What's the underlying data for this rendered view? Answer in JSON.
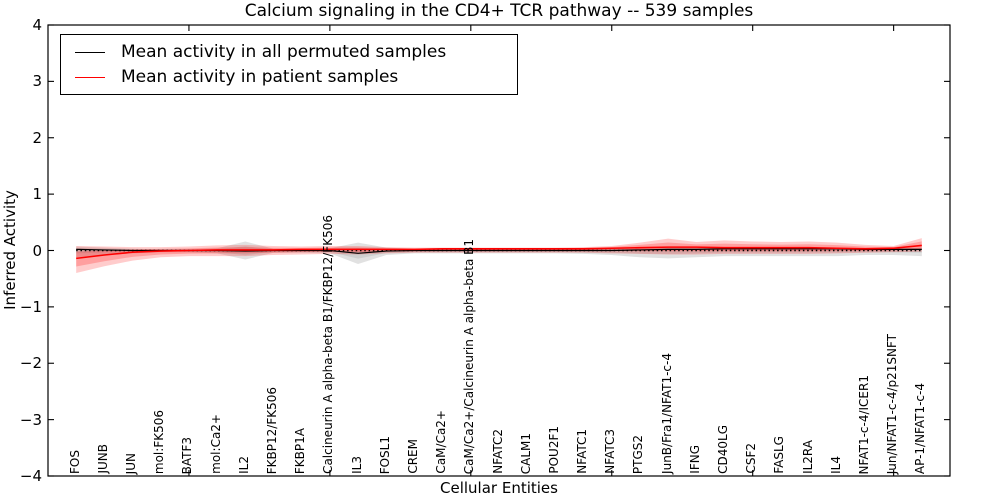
{
  "title": "Calcium signaling in the CD4+ TCR pathway -- 539 samples",
  "legend": {
    "items": [
      {
        "label": "Mean activity in all permuted samples",
        "color": "#000000"
      },
      {
        "label": "Mean activity in patient samples",
        "color": "#ff0000"
      }
    ]
  },
  "axes": {
    "ylabel": "Inferred Activity",
    "xlabel": "Cellular Entities",
    "yticks": [
      "4",
      "3",
      "2",
      "1",
      "0",
      "−1",
      "−2",
      "−3",
      "−4"
    ]
  },
  "colors": {
    "patient_line": "#ff0000",
    "permuted_line": "#000000",
    "patient_band": "#ff0000",
    "permuted_band": "#888888",
    "zero_line": "#000000"
  },
  "chart_data": {
    "type": "line",
    "title": "Calcium signaling in the CD4+ TCR pathway -- 539 samples",
    "xlabel": "Cellular Entities",
    "ylabel": "Inferred Activity",
    "ylim": [
      -4,
      4
    ],
    "grid": false,
    "legend_position": "upper left",
    "zero_line": {
      "y": 0,
      "style": "dotted",
      "color": "#000000"
    },
    "categories": [
      "FOS",
      "JUNB",
      "JUN",
      "mol:FK506",
      "BATF3",
      "mol:Ca2+",
      "IL2",
      "FKBP12/FK506",
      "FKBP1A",
      "Calcineurin A alpha-beta B1/FKBP12/FK506",
      "IL3",
      "FOSL1",
      "CREM",
      "CaM/Ca2+",
      "CaM/Ca2+/Calcineurin A alpha-beta B1",
      "NFATC2",
      "CALM1",
      "POU2F1",
      "NFATC1",
      "NFATC3",
      "PTGS2",
      "JunB/Fra1/NFAT1-c-4",
      "IFNG",
      "CD40LG",
      "CSF2",
      "FASLG",
      "IL2RA",
      "IL4",
      "NFAT1-c-4/ICER1",
      "Jun/NFAT1-c-4/p21SNFT",
      "AP-1/NFAT1-c-4"
    ],
    "series": [
      {
        "name": "Mean activity in all permuted samples",
        "kind": "line",
        "color": "#000000",
        "values": [
          0.02,
          0.01,
          0.0,
          0.0,
          0.0,
          0.0,
          -0.01,
          0.0,
          0.0,
          0.0,
          -0.05,
          -0.01,
          0.0,
          0.0,
          0.0,
          0.0,
          0.0,
          0.0,
          0.0,
          0.0,
          0.01,
          0.02,
          0.02,
          0.03,
          0.03,
          0.03,
          0.03,
          0.03,
          0.02,
          0.02,
          0.02
        ]
      },
      {
        "name": "Mean activity in patient samples",
        "kind": "line",
        "color": "#ff0000",
        "values": [
          -0.14,
          -0.08,
          -0.03,
          -0.01,
          0.0,
          0.01,
          0.01,
          0.01,
          0.02,
          0.02,
          0.02,
          0.02,
          0.02,
          0.03,
          0.03,
          0.03,
          0.03,
          0.03,
          0.03,
          0.04,
          0.05,
          0.06,
          0.06,
          0.05,
          0.05,
          0.05,
          0.05,
          0.04,
          0.03,
          0.04,
          0.09
        ]
      },
      {
        "name": "Permuted samples spread",
        "kind": "band",
        "color": "#888888",
        "upper": [
          0.07,
          0.05,
          0.03,
          0.02,
          0.02,
          0.04,
          0.16,
          0.03,
          0.03,
          0.04,
          0.14,
          0.05,
          0.03,
          0.03,
          0.03,
          0.03,
          0.03,
          0.03,
          0.03,
          0.04,
          0.05,
          0.06,
          0.05,
          0.05,
          0.05,
          0.05,
          0.05,
          0.05,
          0.04,
          0.04,
          0.05
        ],
        "lower": [
          -0.12,
          -0.08,
          -0.05,
          -0.03,
          -0.03,
          -0.05,
          -0.16,
          -0.04,
          -0.04,
          -0.05,
          -0.24,
          -0.08,
          -0.05,
          -0.05,
          -0.05,
          -0.05,
          -0.05,
          -0.05,
          -0.06,
          -0.08,
          -0.12,
          -0.14,
          -0.12,
          -0.1,
          -0.1,
          -0.1,
          -0.1,
          -0.1,
          -0.08,
          -0.08,
          -0.1
        ]
      },
      {
        "name": "Patient samples spread",
        "kind": "band",
        "color": "#ff0000",
        "upper": [
          0.08,
          0.07,
          0.06,
          0.06,
          0.07,
          0.09,
          0.1,
          0.08,
          0.07,
          0.08,
          0.08,
          0.06,
          0.05,
          0.05,
          0.05,
          0.05,
          0.05,
          0.05,
          0.06,
          0.08,
          0.14,
          0.21,
          0.15,
          0.18,
          0.16,
          0.15,
          0.16,
          0.14,
          0.1,
          0.08,
          0.22
        ],
        "lower": [
          -0.4,
          -0.28,
          -0.18,
          -0.12,
          -0.1,
          -0.1,
          -0.1,
          -0.08,
          -0.07,
          -0.06,
          -0.07,
          -0.05,
          -0.04,
          -0.04,
          -0.04,
          -0.04,
          -0.04,
          -0.04,
          -0.04,
          -0.05,
          -0.06,
          -0.07,
          -0.07,
          -0.06,
          -0.06,
          -0.06,
          -0.06,
          -0.05,
          -0.04,
          -0.03,
          -0.02
        ]
      }
    ]
  }
}
